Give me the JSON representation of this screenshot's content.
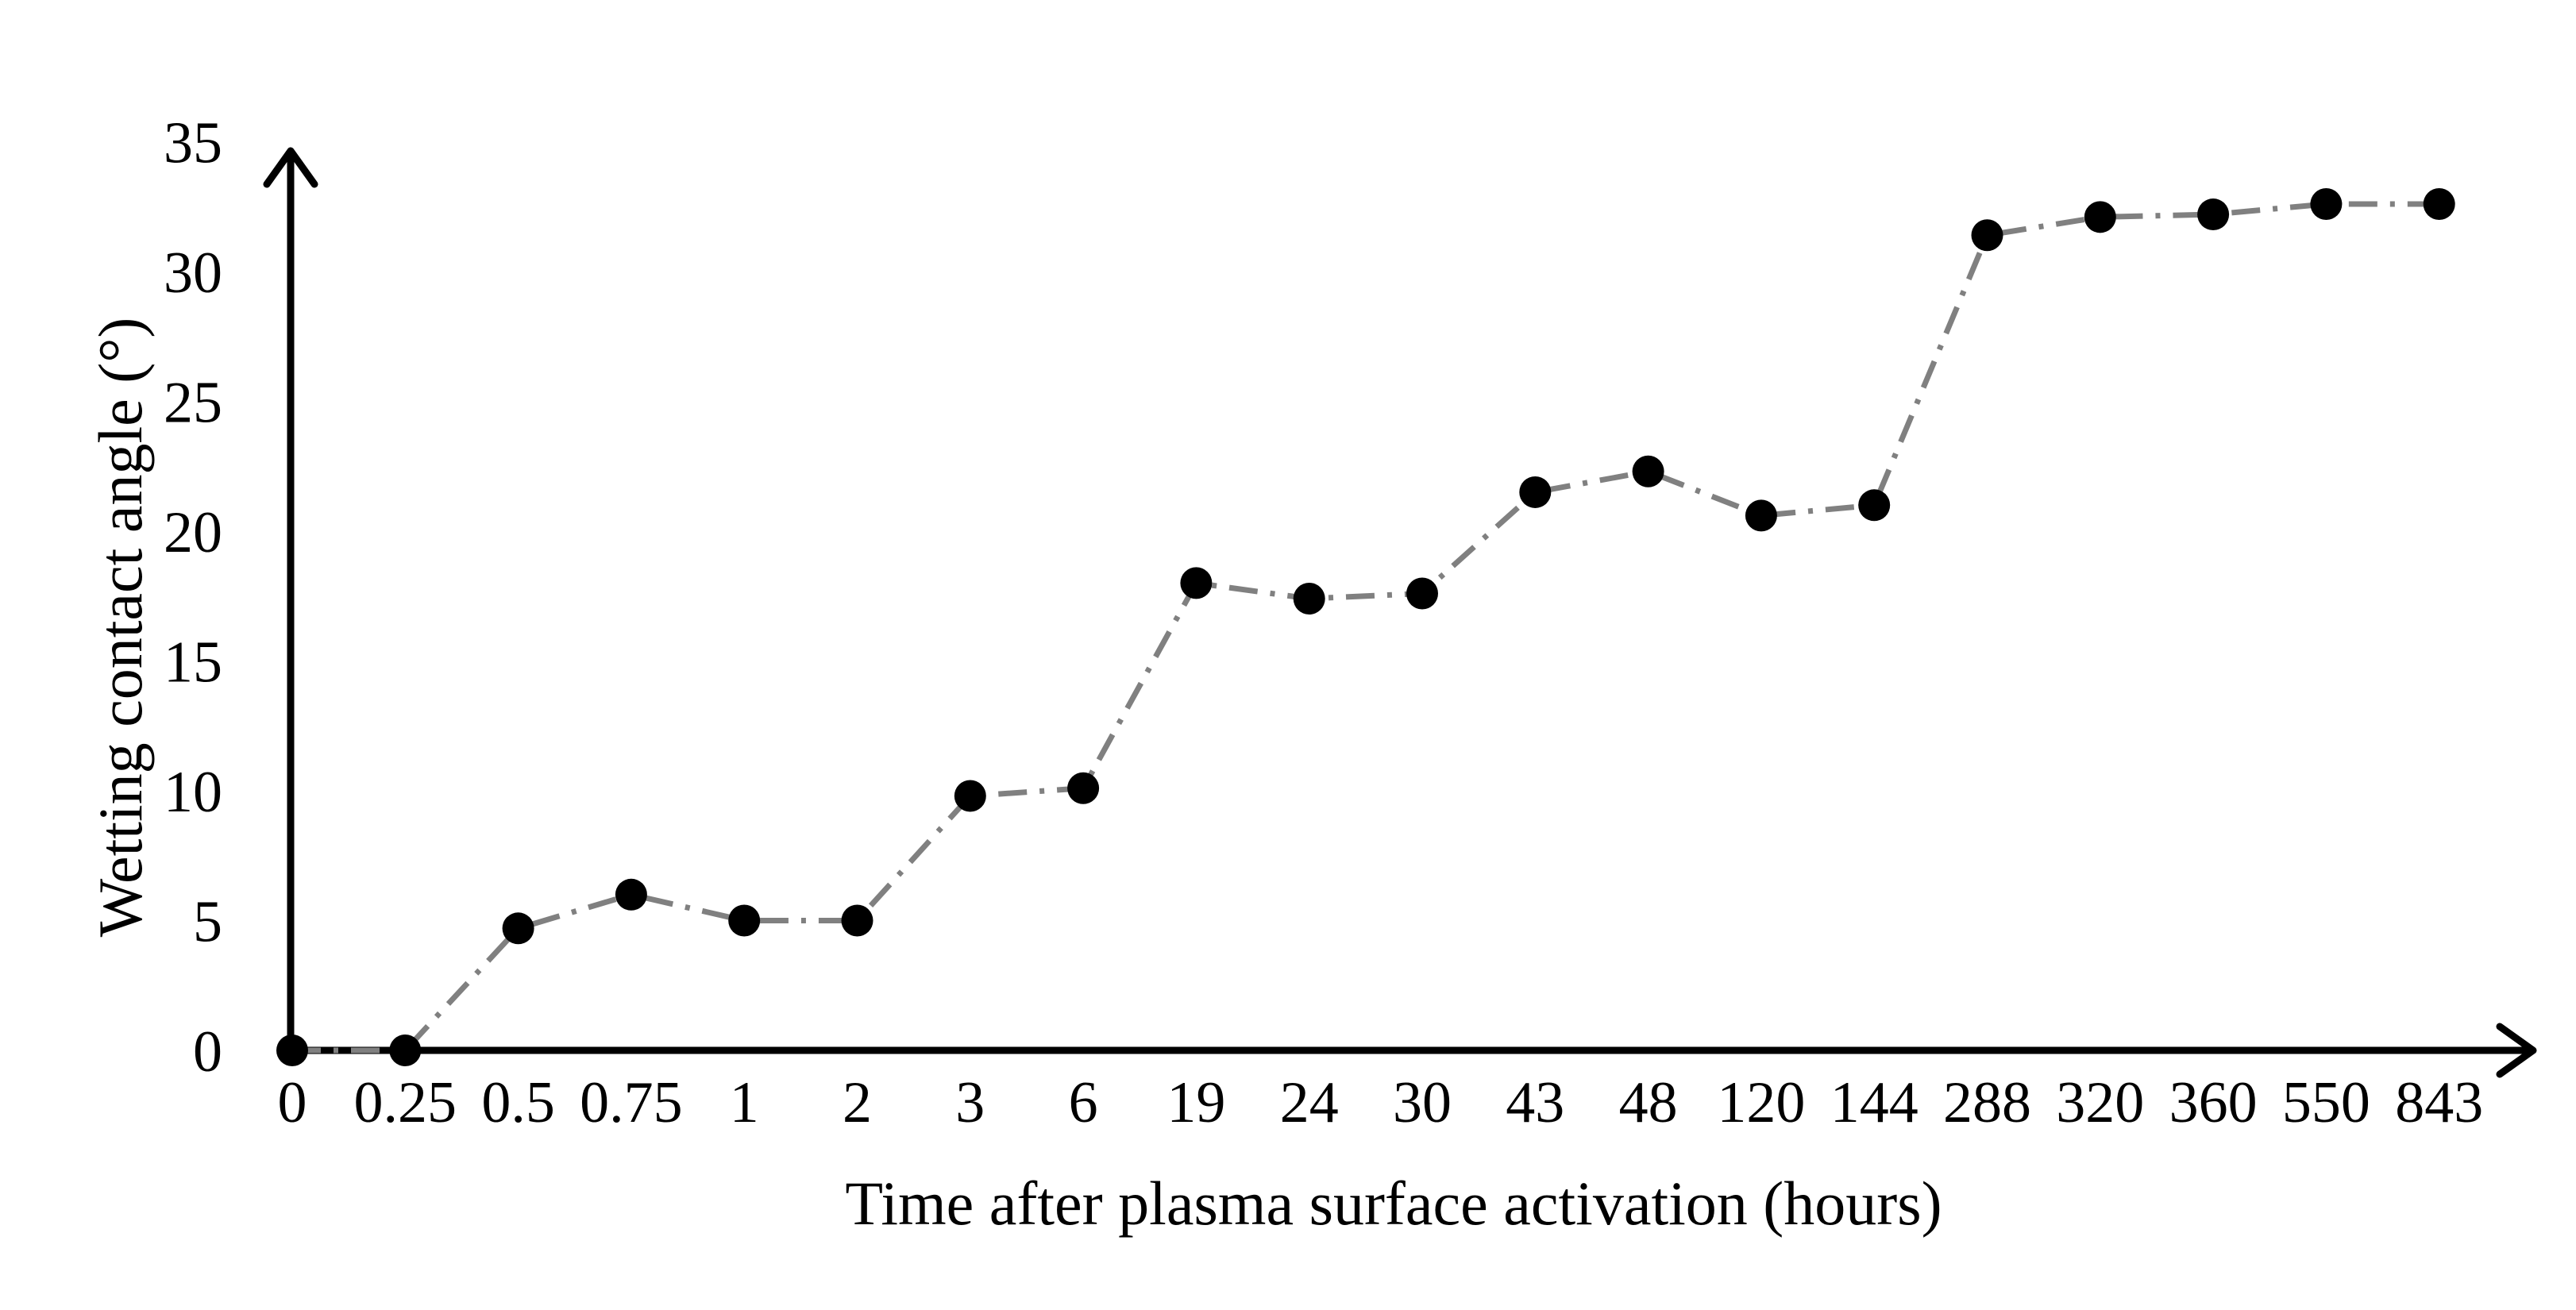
{
  "chart_data": {
    "type": "line",
    "title": "",
    "xlabel": "Time after plasma surface activation (hours)",
    "ylabel": "Wetting contact angle (°)",
    "categories": [
      "0",
      "0.25",
      "0.5",
      "0.75",
      "1",
      "2",
      "3",
      "6",
      "19",
      "24",
      "30",
      "43",
      "48",
      "120",
      "144",
      "288",
      "320",
      "360",
      "550",
      "843"
    ],
    "series": [
      {
        "name": "Wetting contact angle",
        "values": [
          0,
          0,
          4.7,
          6.0,
          5.0,
          5.0,
          9.8,
          10.1,
          18.0,
          17.4,
          17.6,
          21.5,
          22.3,
          20.6,
          21.0,
          31.4,
          32.1,
          32.2,
          32.6,
          32.6
        ]
      }
    ],
    "yticks": [
      "0",
      "5",
      "10",
      "15",
      "20",
      "25",
      "30",
      "35"
    ],
    "ylim": [
      0,
      35
    ],
    "grid": false,
    "line_style": "dash-dot",
    "line_color": "#808080",
    "marker_color": "#000000",
    "axis_color": "#000000"
  }
}
